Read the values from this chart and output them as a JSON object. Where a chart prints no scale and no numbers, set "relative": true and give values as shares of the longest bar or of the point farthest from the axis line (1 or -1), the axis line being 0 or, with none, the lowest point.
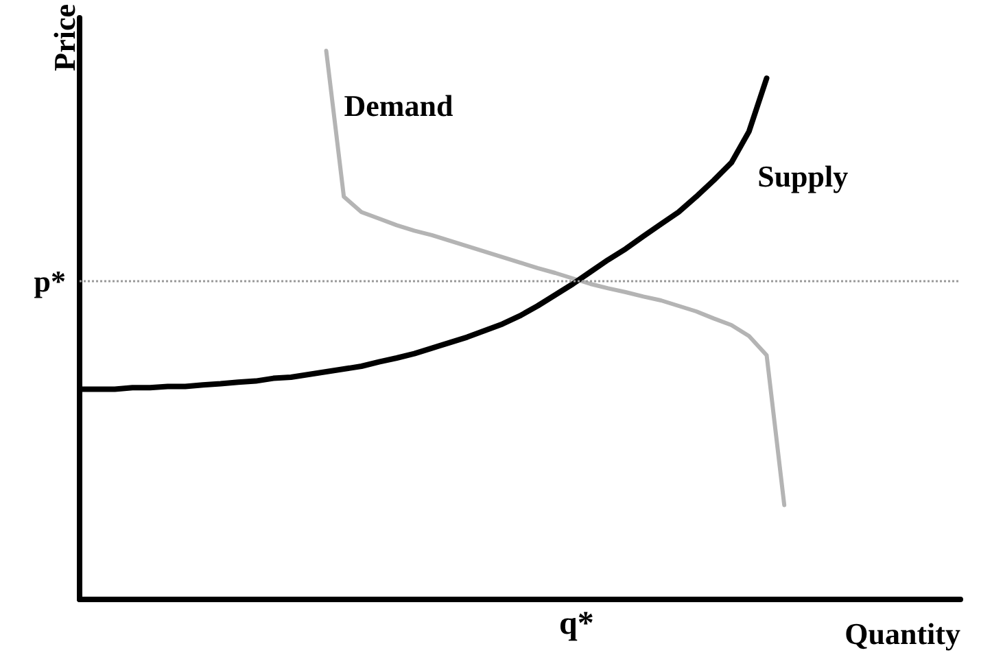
{
  "chart_data": {
    "type": "line",
    "relative": true,
    "xlabel": "Quantity",
    "ylabel": "Price",
    "legend": false,
    "grid": false,
    "marker": "none",
    "line_style": "solid",
    "categories": [
      null,
      null,
      null,
      null,
      null,
      null,
      null,
      null,
      null,
      null,
      null,
      null,
      null,
      null,
      null,
      null,
      null,
      null,
      null,
      null,
      null,
      null,
      null,
      null,
      null,
      null,
      null,
      null,
      null,
      null,
      null,
      null,
      null,
      null,
      null,
      null,
      null,
      null,
      null,
      null,
      null,
      null,
      null,
      null,
      null,
      null,
      null,
      null,
      null,
      null,
      null
    ],
    "series": [
      {
        "name": "Demand",
        "color": "#b4b4b4",
        "values": [
          null,
          null,
          null,
          null,
          null,
          null,
          null,
          null,
          null,
          null,
          null,
          null,
          null,
          null,
          1.0,
          0.734,
          0.706,
          0.694,
          0.682,
          0.672,
          0.664,
          0.654,
          0.644,
          0.634,
          0.624,
          0.614,
          0.604,
          0.595,
          0.585,
          0.575,
          0.567,
          0.56,
          0.552,
          0.545,
          0.535,
          0.525,
          0.512,
          0.5,
          0.48,
          0.445,
          0.172,
          null,
          null,
          null,
          null,
          null,
          null,
          null,
          null,
          null,
          null
        ]
      },
      {
        "name": "Supply",
        "color": "#000000",
        "values": [
          0.383,
          0.383,
          0.383,
          0.386,
          0.386,
          0.388,
          0.388,
          0.391,
          0.393,
          0.396,
          0.398,
          0.403,
          0.405,
          0.41,
          0.415,
          0.42,
          0.425,
          0.433,
          0.44,
          0.448,
          0.458,
          0.468,
          0.478,
          0.49,
          0.502,
          0.517,
          0.535,
          0.555,
          0.575,
          0.597,
          0.619,
          0.639,
          0.662,
          0.684,
          0.706,
          0.734,
          0.764,
          0.796,
          0.853,
          0.95,
          null,
          null,
          null,
          null,
          null,
          null,
          null,
          null,
          null,
          null,
          null
        ]
      }
    ],
    "ref_lines": [
      {
        "axis": "y",
        "value": 0.582,
        "label": "p*",
        "line_style": "dotted",
        "color": "#999999"
      }
    ],
    "annotations": [
      "q*"
    ]
  }
}
